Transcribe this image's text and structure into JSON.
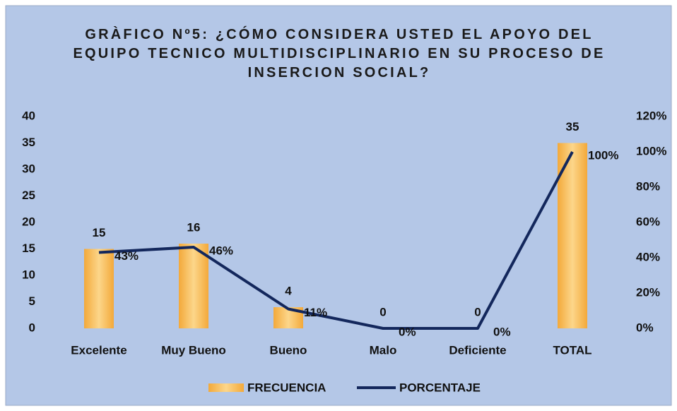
{
  "chart_data": {
    "type": "bar",
    "title": "GRÀFICO Nº5: ¿CÓMO CONSIDERA USTED EL APOYO DEL EQUIPO TECNICO MULTIDISCIPLINARIO EN SU PROCESO DE INSERCION SOCIAL?",
    "categories": [
      "Excelente",
      "Muy Bueno",
      "Bueno",
      "Malo",
      "Deficiente",
      "TOTAL"
    ],
    "series": [
      {
        "name": "FRECUENCIA",
        "type": "bar",
        "color": "#f7bd55",
        "values": [
          15,
          16,
          4,
          0,
          0,
          35
        ]
      },
      {
        "name": "PORCENTAJE",
        "type": "line",
        "axis": "y2",
        "color": "#13275c",
        "values": [
          43,
          46,
          11,
          0,
          0,
          100
        ],
        "value_labels": [
          "43%",
          "46%",
          "11%",
          "0%",
          "0%",
          "100%"
        ]
      }
    ],
    "ylim": [
      0,
      40
    ],
    "yticks": [
      0,
      5,
      10,
      15,
      20,
      25,
      30,
      35,
      40
    ],
    "y2lim": [
      0,
      120
    ],
    "y2ticks": [
      {
        "value": 0,
        "label": "0%"
      },
      {
        "value": 20,
        "label": "20%"
      },
      {
        "value": 40,
        "label": "40%"
      },
      {
        "value": 60,
        "label": "60%"
      },
      {
        "value": 80,
        "label": "80%"
      },
      {
        "value": 100,
        "label": "100%"
      },
      {
        "value": 120,
        "label": "120%"
      }
    ],
    "grid": false,
    "legend": "bottom"
  }
}
